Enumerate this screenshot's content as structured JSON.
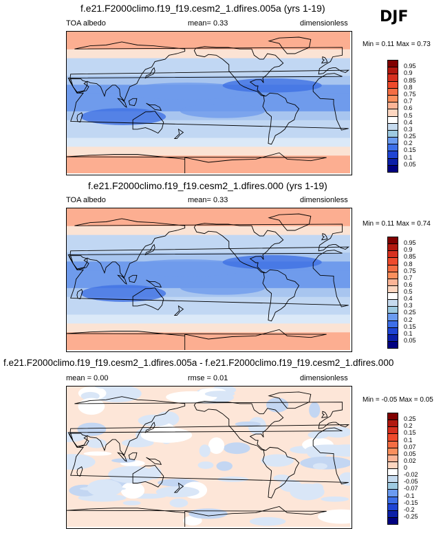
{
  "season": "DJF",
  "panels": [
    {
      "title": "f.e21.F2000climo.f19_f19.cesm2_1.dfires.005a (yrs 1-19)",
      "left_label": "TOA albedo",
      "center_label": "mean=   0.33",
      "right_label": "dimensionless",
      "min_max": "Min =   0.11 Max =   0.73",
      "colorbar": {
        "labels": [
          "0.95",
          "0.9",
          "0.85",
          "0.8",
          "0.75",
          "0.7",
          "0.6",
          "0.5",
          "0.4",
          "0.3",
          "0.25",
          "0.2",
          "0.15",
          "0.1",
          "0.05"
        ],
        "colors": [
          "#800000",
          "#b2180f",
          "#d7301f",
          "#ef4a2c",
          "#f46d43",
          "#fb8f5d",
          "#fcb496",
          "#fdd6c0",
          "#ffffff",
          "#c6dbef",
          "#9ecae1",
          "#6b9bf0",
          "#3d6fe8",
          "#1f45d4",
          "#0b1fa8",
          "#000080"
        ]
      },
      "zonal_bands": [
        0.72,
        0.72,
        0.52,
        0.36,
        0.33,
        0.26,
        0.22,
        0.2,
        0.22,
        0.28,
        0.3,
        0.38,
        0.45,
        0.58,
        0.7,
        0.7
      ]
    },
    {
      "title": "f.e21.F2000climo.f19_f19.cesm2_1.dfires.000 (yrs 1-19)",
      "left_label": "TOA albedo",
      "center_label": "mean=   0.33",
      "right_label": "dimensionless",
      "min_max": "Min =   0.11 Max =   0.74",
      "colorbar": {
        "labels": [
          "0.95",
          "0.9",
          "0.85",
          "0.8",
          "0.75",
          "0.7",
          "0.6",
          "0.5",
          "0.4",
          "0.3",
          "0.25",
          "0.2",
          "0.15",
          "0.1",
          "0.05"
        ],
        "colors": [
          "#800000",
          "#b2180f",
          "#d7301f",
          "#ef4a2c",
          "#f46d43",
          "#fb8f5d",
          "#fcb496",
          "#fdd6c0",
          "#ffffff",
          "#c6dbef",
          "#9ecae1",
          "#6b9bf0",
          "#3d6fe8",
          "#1f45d4",
          "#0b1fa8",
          "#000080"
        ]
      },
      "zonal_bands": [
        0.72,
        0.72,
        0.52,
        0.36,
        0.33,
        0.26,
        0.22,
        0.2,
        0.22,
        0.28,
        0.3,
        0.38,
        0.45,
        0.58,
        0.7,
        0.7
      ]
    },
    {
      "title": "f.e21.F2000climo.f19_f19.cesm2_1.dfires.005a - f.e21.F2000climo.f19_f19.cesm2_1.dfires.000",
      "left_label": "mean =   0.00",
      "center_label": "rmse =   0.01",
      "right_label": "dimensionless",
      "min_max": "Min =  -0.05 Max =   0.05",
      "colorbar": {
        "labels": [
          "0.25",
          "0.2",
          "0.15",
          "0.1",
          "0.07",
          "0.05",
          "0.02",
          "0",
          "-0.02",
          "-0.05",
          "-0.07",
          "-0.1",
          "-0.15",
          "-0.2",
          "-0.25"
        ],
        "colors": [
          "#800000",
          "#b2180f",
          "#d7301f",
          "#ef4a2c",
          "#f46d43",
          "#fb8f5d",
          "#fcb496",
          "#fdd6c0",
          "#ffffff",
          "#c6dbef",
          "#9ecae1",
          "#6b9bf0",
          "#3d6fe8",
          "#1f45d4",
          "#0b1fa8",
          "#000080"
        ]
      }
    }
  ]
}
